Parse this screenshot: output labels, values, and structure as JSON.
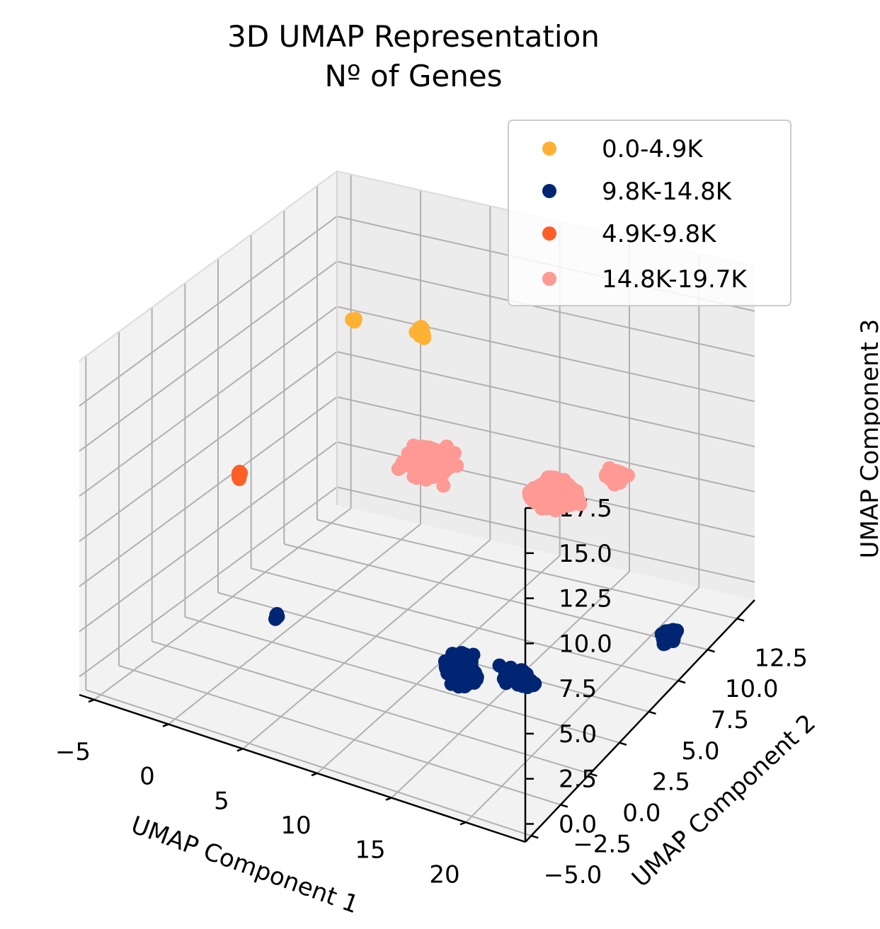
{
  "chart_data": {
    "type": "scatter",
    "projection": "3d",
    "title": [
      "3D UMAP Representation",
      "Nº of Genes"
    ],
    "xlabel": "UMAP Component 1",
    "ylabel": "UMAP Component 2",
    "zlabel": "UMAP Component 3",
    "xlim": [
      -6,
      24
    ],
    "ylim": [
      -5.5,
      14
    ],
    "zlim": [
      -1,
      17.5
    ],
    "xticks": [
      "−5",
      "0",
      "5",
      "10",
      "15",
      "20"
    ],
    "yticks": [
      "−5.0",
      "−2.5",
      "0.0",
      "2.5",
      "5.0",
      "7.5",
      "10.0",
      "12.5"
    ],
    "zticks": [
      "0.0",
      "2.5",
      "5.0",
      "7.5",
      "10.0",
      "12.5",
      "15.0",
      "17.5"
    ],
    "grid": true,
    "legend_position": "top-right",
    "series": [
      {
        "name": "0.0-4.9K",
        "color": "#ffb133",
        "clusters": [
          {
            "center": [
              -1.5,
              10.5,
              12.0
            ],
            "spread": [
              0.1,
              0.1,
              0.1
            ],
            "n": 6
          },
          {
            "center": [
              0.5,
              13.5,
              10.0
            ],
            "spread": [
              0.2,
              0.2,
              0.3
            ],
            "n": 20
          }
        ]
      },
      {
        "name": "9.8K-14.8K",
        "color": "#002673",
        "clusters": [
          {
            "center": [
              1.5,
              1.2,
              1.5
            ],
            "spread": [
              0.1,
              0.1,
              0.1
            ],
            "n": 6
          },
          {
            "center": [
              13.0,
              2.5,
              0.5
            ],
            "spread": [
              0.8,
              0.5,
              0.6
            ],
            "n": 220
          },
          {
            "center": [
              17.0,
              2.5,
              1.0
            ],
            "spread": [
              1.0,
              0.3,
              0.3
            ],
            "n": 80
          },
          {
            "center": [
              22.5,
              8.5,
              0.5
            ],
            "spread": [
              0.4,
              0.4,
              0.3
            ],
            "n": 40
          }
        ]
      },
      {
        "name": "4.9K-9.8K",
        "color": "#ff5e26",
        "clusters": [
          {
            "center": [
              -5.0,
              5.5,
              5.5
            ],
            "spread": [
              0.1,
              0.1,
              0.3
            ],
            "n": 15
          }
        ]
      },
      {
        "name": "14.8K-19.7K",
        "color": "#ff9994",
        "clusters": [
          {
            "center": [
              2.5,
              12.0,
              4.0
            ],
            "spread": [
              1.4,
              0.8,
              0.4
            ],
            "n": 260
          },
          {
            "center": [
              11.0,
              12.5,
              3.5
            ],
            "spread": [
              1.3,
              0.8,
              0.5
            ],
            "n": 260
          },
          {
            "center": [
              14.5,
              13.5,
              4.5
            ],
            "spread": [
              0.7,
              0.4,
              0.3
            ],
            "n": 40
          }
        ]
      }
    ]
  }
}
